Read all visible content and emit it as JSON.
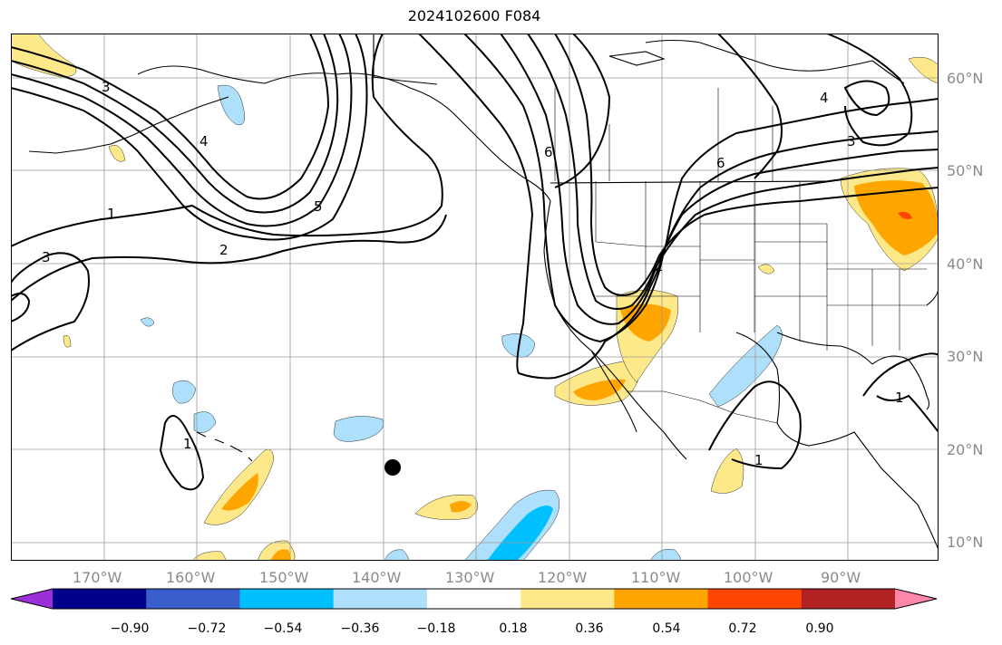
{
  "title": "2024102600 F084",
  "map": {
    "lon_ticks": [
      "170°W",
      "160°W",
      "150°W",
      "140°W",
      "130°W",
      "120°W",
      "110°W",
      "100°W",
      "90°W"
    ],
    "lat_ticks": [
      "60°N",
      "50°N",
      "40°N",
      "30°N",
      "20°N",
      "10°N"
    ],
    "contour_labels": [
      "1",
      "2",
      "3",
      "3",
      "4",
      "5",
      "6",
      "1",
      "1",
      "1",
      "2",
      "6",
      "3",
      "4"
    ],
    "marker": "black-dot"
  },
  "colorbar": {
    "tick_labels": [
      "−0.90",
      "−0.72",
      "−0.54",
      "−0.36",
      "−0.18",
      "0.18",
      "0.36",
      "0.54",
      "0.72",
      "0.90"
    ],
    "colors": [
      "#9b30d9",
      "#00008b",
      "#3a5fcd",
      "#00bfff",
      "#aee0fb",
      "#ffffff",
      "#fee98a",
      "#ffa500",
      "#ff4500",
      "#b22222",
      "#ff88aa"
    ]
  }
}
